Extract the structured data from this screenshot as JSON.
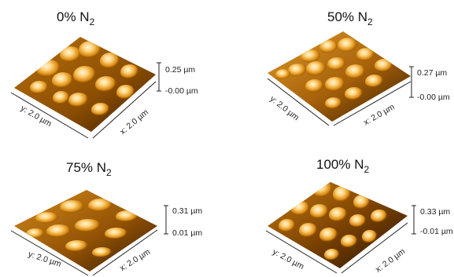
{
  "panels": [
    {
      "title_main": "0% N",
      "title_sub": "2",
      "y_axis_label": "y: 2.0 µm",
      "x_axis_label": "x: 2.0 µm",
      "z_top": "0.25 µm",
      "z_bottom": "-0.00 µm"
    },
    {
      "title_main": "50% N",
      "title_sub": "2",
      "y_axis_label": "y: 2.0 µm",
      "x_axis_label": "x: 2.0 µm",
      "z_top": "0.27 µm",
      "z_bottom": "-0.00 µm"
    },
    {
      "title_main": "75% N",
      "title_sub": "2",
      "y_axis_label": "y: 2.0 µm",
      "x_axis_label": "x: 2.0 µm",
      "z_top": "0.31 µm",
      "z_bottom": "0.01 µm"
    },
    {
      "title_main": "100% N",
      "title_sub": "2",
      "y_axis_label": "y: 2.0 µm",
      "x_axis_label": "x: 2.0 µm",
      "z_top": "0.33 µm",
      "z_bottom": "-0.01 µm"
    }
  ],
  "colors": {
    "surface_dark": "#3a1e00",
    "surface_mid": "#c77a0e",
    "surface_light": "#ffe6a8",
    "surface_highlight": "#fff6dc"
  }
}
